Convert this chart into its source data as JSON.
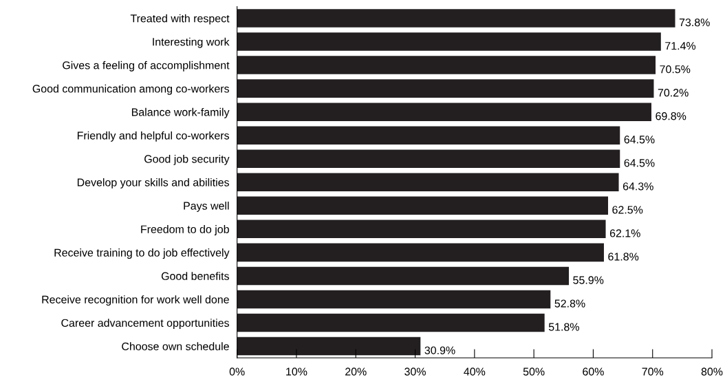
{
  "chart_data": {
    "type": "bar",
    "orientation": "horizontal",
    "categories": [
      "Treated with respect",
      "Interesting work",
      "Gives a feeling of accomplishment",
      "Good communication among co-workers",
      "Balance work-family",
      "Friendly and helpful co-workers",
      "Good job security",
      "Develop your skills and abilities",
      "Pays well",
      "Freedom to do job",
      "Receive training to do job effectively",
      "Good benefits",
      "Receive recognition for work well done",
      "Career advancement opportunities",
      "Choose own schedule"
    ],
    "values": [
      73.8,
      71.4,
      70.5,
      70.2,
      69.8,
      64.5,
      64.5,
      64.3,
      62.5,
      62.1,
      61.8,
      55.9,
      52.8,
      51.8,
      30.9
    ],
    "value_labels": [
      "73.8%",
      "71.4%",
      "70.5%",
      "70.2%",
      "69.8%",
      "64.5%",
      "64.5%",
      "64.3%",
      "62.5%",
      "62.1%",
      "61.8%",
      "55.9%",
      "52.8%",
      "51.8%",
      "30.9%"
    ],
    "color": "#231f20",
    "xlim": [
      0,
      80
    ],
    "xticks": [
      {
        "value": 0,
        "label": "0%"
      },
      {
        "value": 10,
        "label": "10%"
      },
      {
        "value": 20,
        "label": "20%"
      },
      {
        "value": 30,
        "label": "30%"
      },
      {
        "value": 40,
        "label": "40%"
      },
      {
        "value": 50,
        "label": "50%"
      },
      {
        "value": 60,
        "label": "60%"
      },
      {
        "value": 70,
        "label": "70%"
      },
      {
        "value": 80,
        "label": "80%"
      }
    ],
    "grid": false,
    "legend": false
  }
}
